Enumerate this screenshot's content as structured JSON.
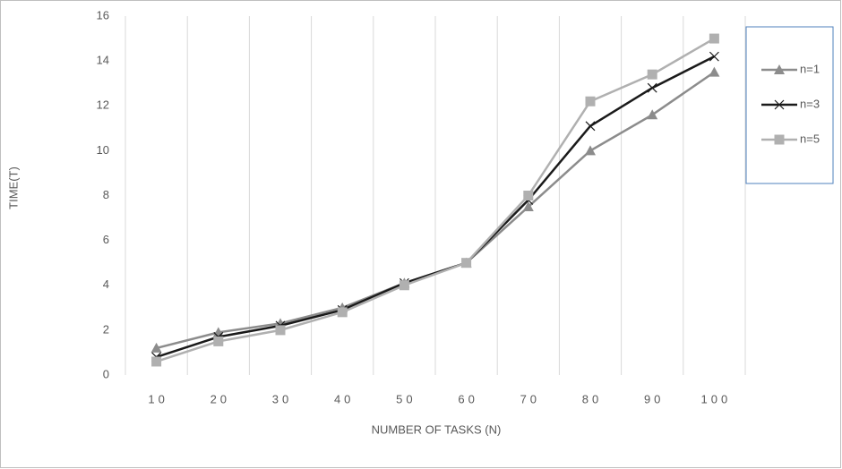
{
  "chart_data": {
    "type": "line",
    "x_label": "NUMBER OF TASKS (N)",
    "y_label": "TIME(T)",
    "categories": [
      "10",
      "20",
      "30",
      "40",
      "50",
      "60",
      "70",
      "80",
      "90",
      "100"
    ],
    "series": [
      {
        "name": "n=1",
        "color": "#8c8c8c",
        "marker": "triangle",
        "values": [
          1.2,
          1.9,
          2.3,
          3.0,
          4.1,
          5.0,
          7.5,
          10.0,
          11.6,
          13.5
        ]
      },
      {
        "name": "n=3",
        "color": "#1a1a1a",
        "marker": "x",
        "values": [
          0.8,
          1.7,
          2.2,
          2.9,
          4.1,
          5.0,
          7.8,
          11.1,
          12.8,
          14.2
        ]
      },
      {
        "name": "n=5",
        "color": "#b0b0b0",
        "marker": "square",
        "values": [
          0.6,
          1.5,
          2.0,
          2.8,
          4.0,
          5.0,
          8.0,
          12.2,
          13.4,
          15.0
        ]
      }
    ],
    "ylim": [
      0,
      16
    ],
    "yticks": [
      0,
      2,
      4,
      6,
      8,
      10,
      12,
      14,
      16
    ],
    "grid": "x",
    "legend": "right"
  }
}
